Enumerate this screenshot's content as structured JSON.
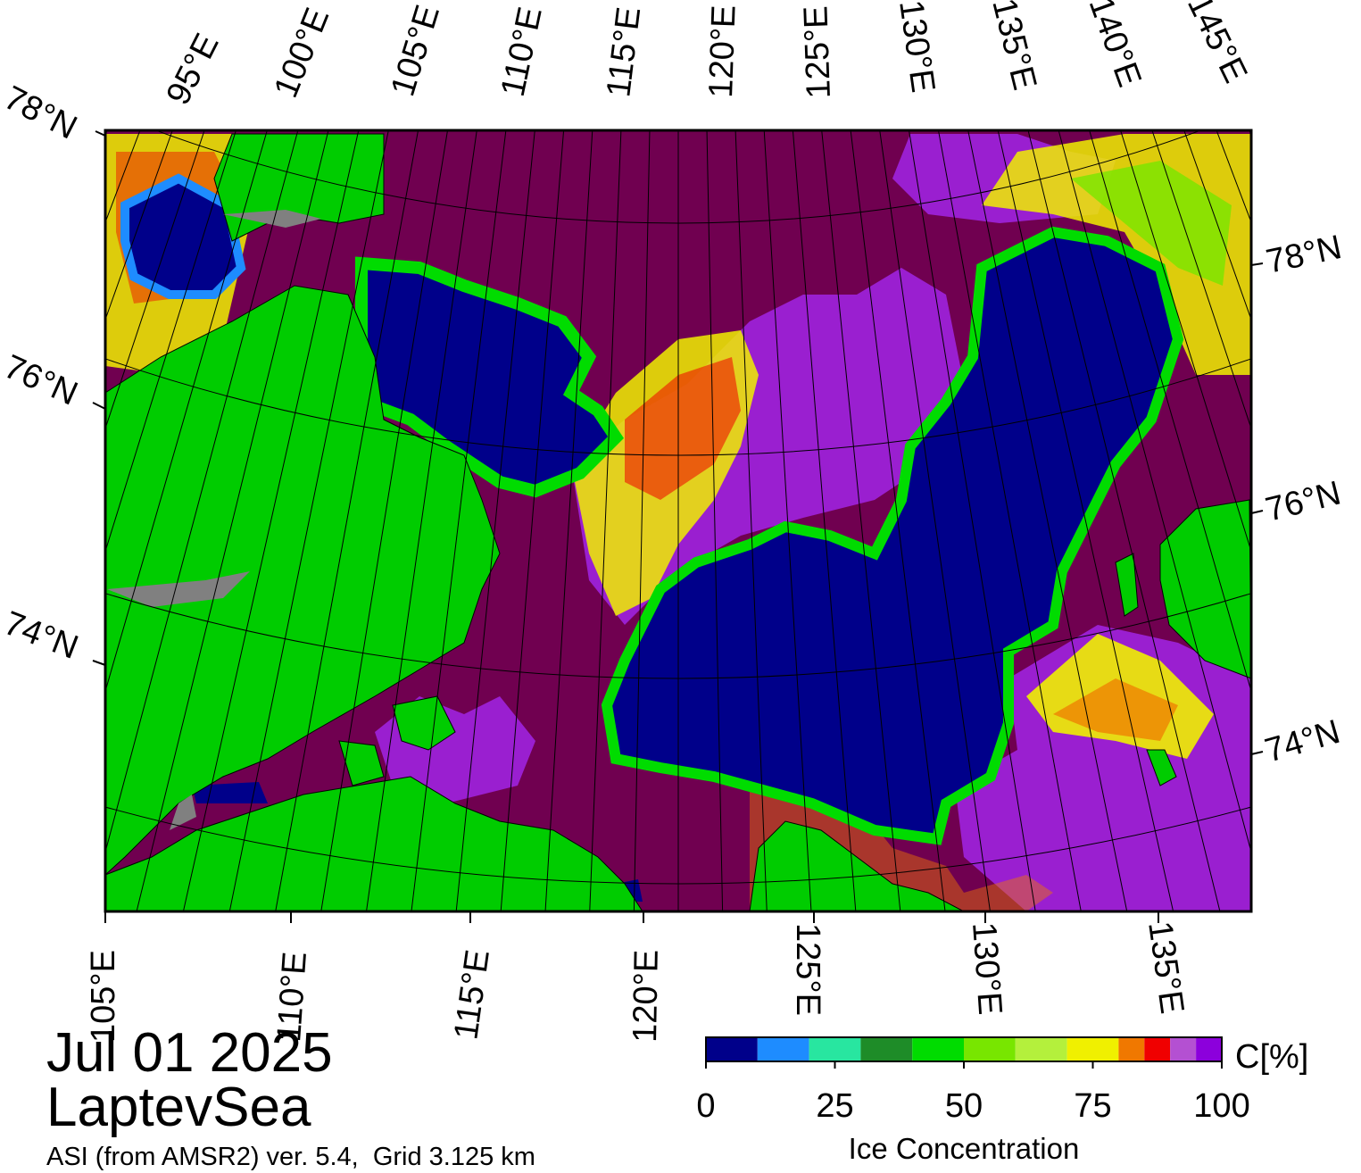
{
  "title": {
    "date": "Jul 01 2025",
    "region": "LaptevSea"
  },
  "source": "ASI (from AMSR2) ver. 5.4,  Grid 3.125 km",
  "map": {
    "top_lon_labels": [
      "95°E",
      "100°E",
      "105°E",
      "110°E",
      "115°E",
      "120°E",
      "125°E",
      "130°E",
      "135°E",
      "140°E",
      "145°E"
    ],
    "bottom_lon_labels": [
      "105°E",
      "110°E",
      "115°E",
      "120°E",
      "125°E",
      "130°E",
      "135°E"
    ],
    "left_lat_labels": [
      "78°N",
      "76°N",
      "74°N"
    ],
    "right_lat_labels": [
      "78°N",
      "76°N",
      "74°N"
    ],
    "colors": {
      "land": "#00cc00",
      "land_ice": "#808080",
      "ice_full": "#700050",
      "ice_high": "#9a1fd0",
      "open_water": "#00008a"
    }
  },
  "colorbar": {
    "unit_label": "C[%]",
    "title": "Ice Concentration",
    "tick_labels": [
      "0",
      "25",
      "50",
      "75",
      "100"
    ],
    "min": 0,
    "max": 100,
    "bins": [
      {
        "from": 0,
        "to": 10,
        "color": "#00008a"
      },
      {
        "from": 10,
        "to": 20,
        "color": "#1e8cff"
      },
      {
        "from": 20,
        "to": 30,
        "color": "#28e6a0"
      },
      {
        "from": 30,
        "to": 40,
        "color": "#1e8c28"
      },
      {
        "from": 40,
        "to": 50,
        "color": "#00dc00"
      },
      {
        "from": 50,
        "to": 60,
        "color": "#78e600"
      },
      {
        "from": 60,
        "to": 70,
        "color": "#b4f03c"
      },
      {
        "from": 70,
        "to": 80,
        "color": "#f0f000"
      },
      {
        "from": 80,
        "to": 85,
        "color": "#f07800"
      },
      {
        "from": 85,
        "to": 90,
        "color": "#f00000"
      },
      {
        "from": 90,
        "to": 95,
        "color": "#b450d2"
      },
      {
        "from": 95,
        "to": 100,
        "color": "#8c00dc"
      }
    ]
  }
}
